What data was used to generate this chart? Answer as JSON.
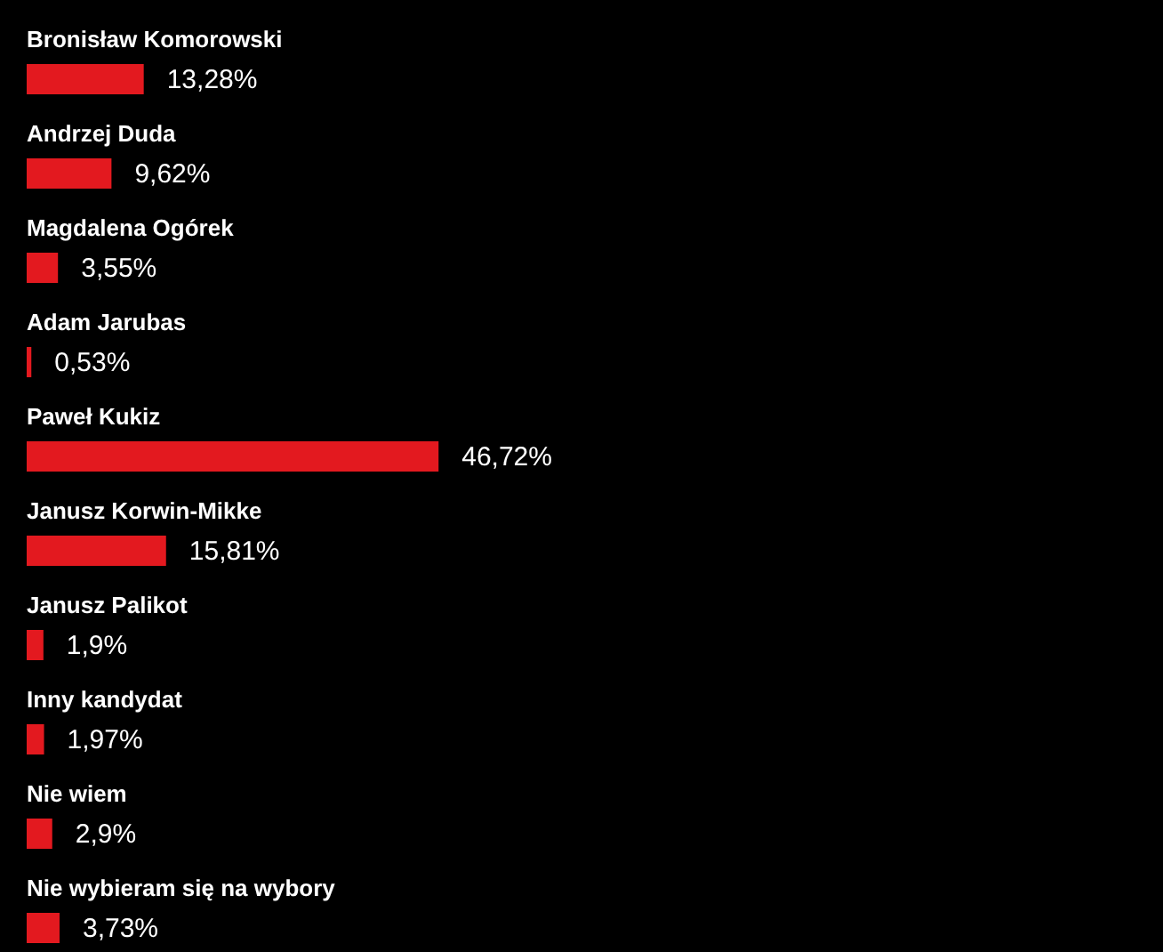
{
  "chart_data": {
    "type": "bar",
    "orientation": "horizontal",
    "color": "#e3191f",
    "categories": [
      "Bronisław Komorowski",
      "Andrzej Duda",
      "Magdalena Ogórek",
      "Adam Jarubas",
      "Paweł Kukiz",
      "Janusz Korwin-Mikke",
      "Janusz Palikot",
      "Inny kandydat",
      "Nie wiem",
      "Nie wybieram się na wybory"
    ],
    "values": [
      13.28,
      9.62,
      3.55,
      0.53,
      46.72,
      15.81,
      1.9,
      1.97,
      2.9,
      3.73
    ],
    "value_labels": [
      "13,28%",
      "9,62%",
      "3,55%",
      "0,53%",
      "46,72%",
      "15,81%",
      "1,9%",
      "1,97%",
      "2,9%",
      "3,73%"
    ]
  }
}
